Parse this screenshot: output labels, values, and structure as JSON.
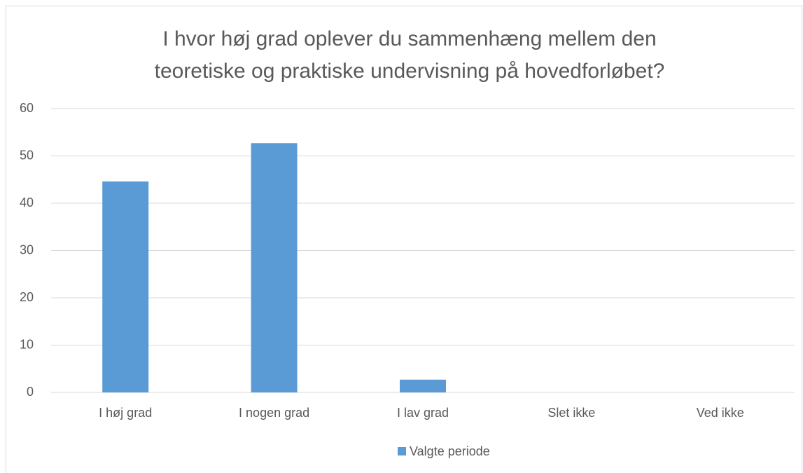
{
  "chart_data": {
    "type": "bar",
    "title": [
      "I hvor høj grad oplever du sammenhæng mellem den",
      "teoretiske og praktiske undervisning på hovedforløbet?"
    ],
    "categories": [
      "I høj grad",
      "I nogen grad",
      "I lav grad",
      "Slet ikke",
      "Ved ikke"
    ],
    "series": [
      {
        "name": "Valgte periode",
        "color": "#5b9bd5",
        "values": [
          44.6,
          52.7,
          2.7,
          0,
          0
        ]
      }
    ],
    "ylim": [
      0,
      60
    ],
    "yticks": [
      0,
      10,
      20,
      30,
      40,
      50,
      60
    ],
    "grid": true,
    "legend": "bottom"
  }
}
